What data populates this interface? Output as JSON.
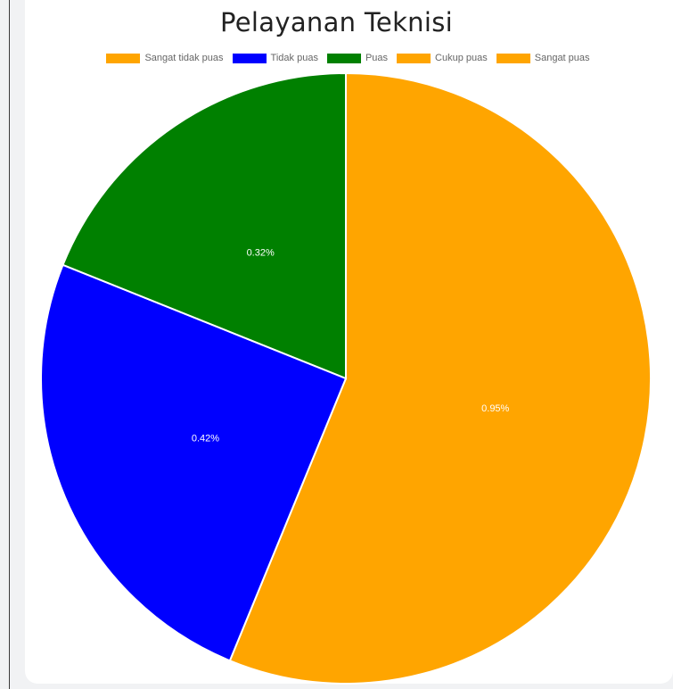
{
  "chart_data": {
    "type": "pie",
    "title": "Pelayanan Teknisi",
    "legend_position": "top",
    "categories": [
      "Sangat tidak puas",
      "Tidak puas",
      "Puas",
      "Cukup puas",
      "Sangat puas"
    ],
    "values": [
      0.95,
      0.42,
      0.32,
      0,
      0
    ],
    "labels": [
      "0.95%",
      "0.42%",
      "0.32%",
      "",
      ""
    ],
    "colors": [
      "#ffa500",
      "#0000ff",
      "#008000",
      "#ffa500",
      "#ffa500"
    ],
    "slice_border_color": "#ffffff"
  }
}
